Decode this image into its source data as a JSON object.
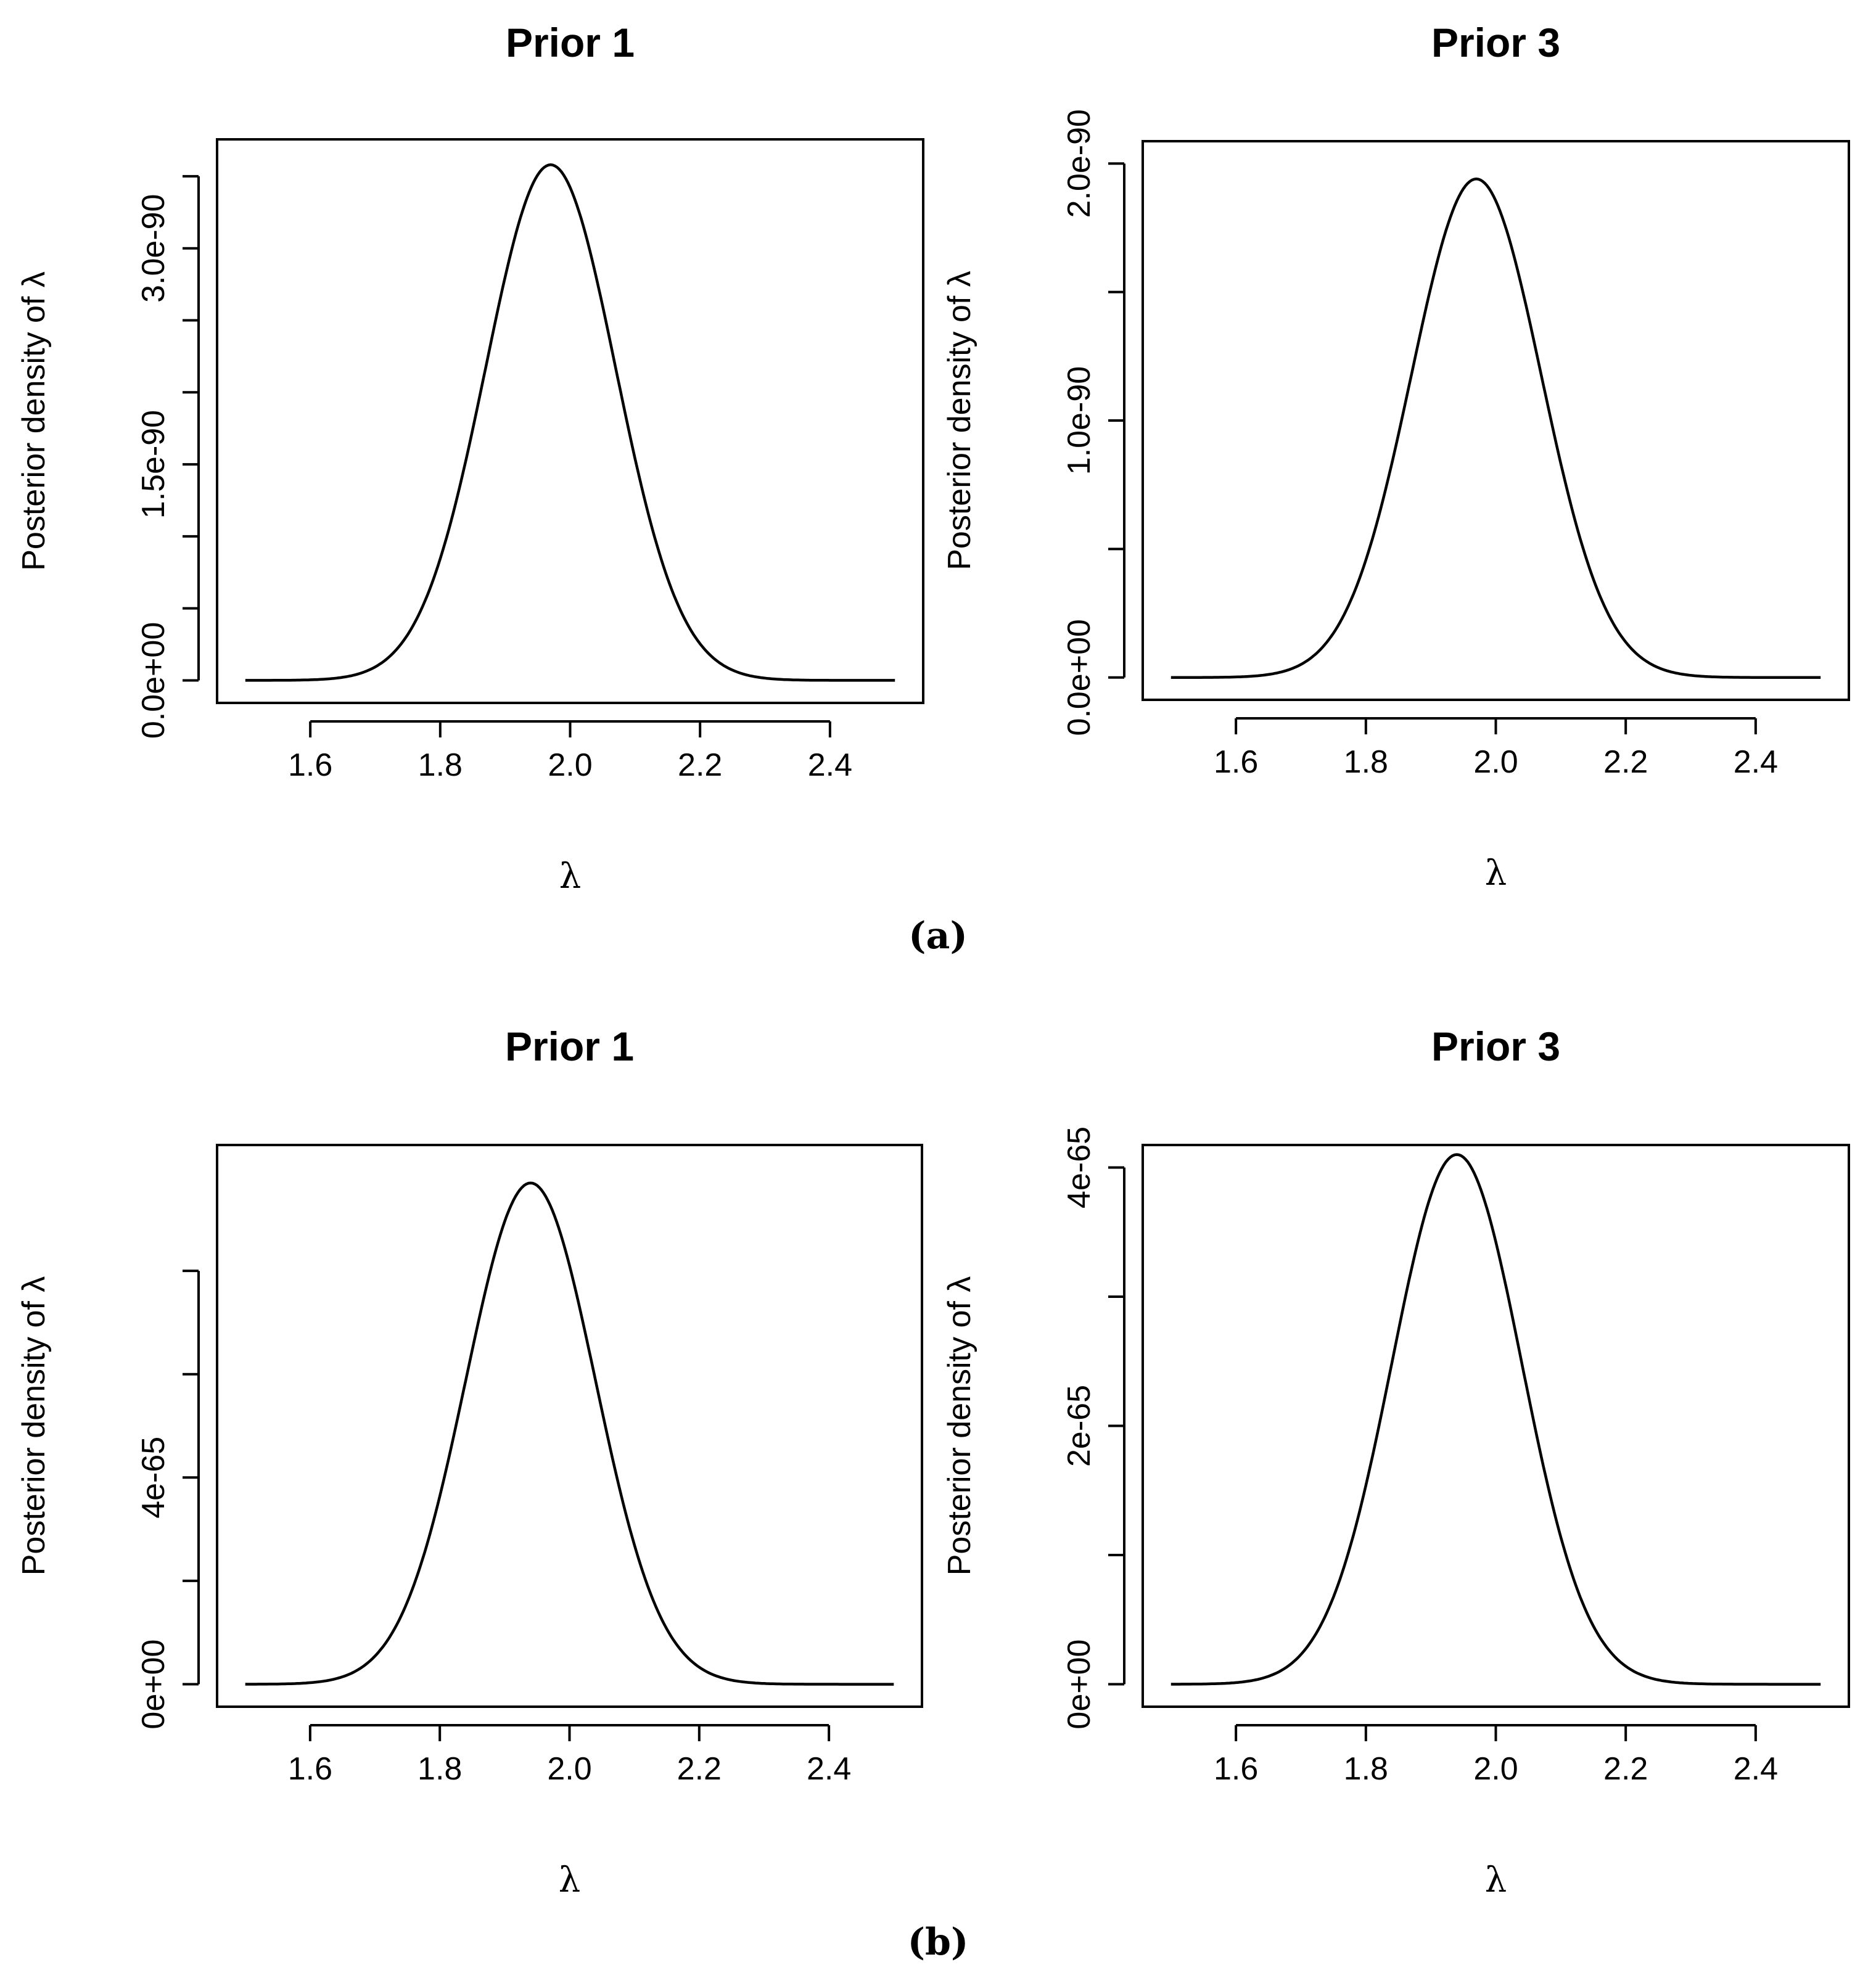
{
  "figure_labels": [
    "(a)",
    "(b)"
  ],
  "chart_data": [
    {
      "type": "line",
      "panel": "a",
      "title": "Prior 1",
      "xlabel": "λ",
      "ylabel": "Posterior density of  λ",
      "xlim": [
        1.5,
        2.5
      ],
      "ylim": [
        0,
        3.6e-90
      ],
      "x_ticks": [
        "1.6",
        "1.8",
        "2.0",
        "2.2",
        "2.4"
      ],
      "y_tick_values": [
        0,
        5e-91,
        1e-90,
        1.5e-90,
        2e-90,
        2.5e-90,
        3e-90,
        3.5e-90
      ],
      "y_tick_labels": [
        "0.0e+00",
        "",
        "",
        "1.5e-90",
        "",
        "",
        "3.0e-90",
        ""
      ],
      "series": [
        {
          "name": "posterior density",
          "distribution": "normal",
          "mean": 1.97,
          "sd": 0.1,
          "peak": 3.58e-90
        }
      ],
      "grid": false
    },
    {
      "type": "line",
      "panel": "a",
      "title": "Prior 3",
      "xlabel": "λ",
      "ylabel": "Posterior density of  λ",
      "xlim": [
        1.5,
        2.5
      ],
      "ylim": [
        0,
        2e-90
      ],
      "x_ticks": [
        "1.6",
        "1.8",
        "2.0",
        "2.2",
        "2.4"
      ],
      "y_tick_values": [
        0,
        5e-91,
        1e-90,
        1.5e-90,
        2e-90
      ],
      "y_tick_labels": [
        "0.0e+00",
        "",
        "1.0e-90",
        "",
        "2.0e-90"
      ],
      "series": [
        {
          "name": "posterior density",
          "distribution": "normal",
          "mean": 1.97,
          "sd": 0.1,
          "peak": 1.94e-90
        }
      ],
      "grid": false
    },
    {
      "type": "line",
      "panel": "b",
      "title": "Prior 1",
      "xlabel": "λ",
      "ylabel": "Posterior density of  λ",
      "xlim": [
        1.5,
        2.5
      ],
      "ylim": [
        0,
        1e-64
      ],
      "x_ticks": [
        "1.6",
        "1.8",
        "2.0",
        "2.2",
        "2.4"
      ],
      "y_tick_values": [
        0,
        2e-65,
        4e-65,
        6e-65,
        8e-65
      ],
      "y_tick_labels": [
        "0e+00",
        "",
        "4e-65",
        "",
        ""
      ],
      "series": [
        {
          "name": "posterior density",
          "distribution": "normal",
          "mean": 1.94,
          "sd": 0.1,
          "peak": 9.7e-65
        }
      ],
      "grid": false
    },
    {
      "type": "line",
      "panel": "b",
      "title": "Prior 3",
      "xlabel": "λ",
      "ylabel": "Posterior density of  λ",
      "xlim": [
        1.5,
        2.5
      ],
      "ylim": [
        0,
        4e-65
      ],
      "x_ticks": [
        "1.6",
        "1.8",
        "2.0",
        "2.2",
        "2.4"
      ],
      "y_tick_values": [
        0,
        1e-65,
        2e-65,
        3e-65,
        4e-65
      ],
      "y_tick_labels": [
        "0e+00",
        "",
        "2e-65",
        "",
        "4e-65"
      ],
      "series": [
        {
          "name": "posterior density",
          "distribution": "normal",
          "mean": 1.94,
          "sd": 0.1,
          "peak": 4.1e-65
        }
      ],
      "grid": false
    }
  ]
}
